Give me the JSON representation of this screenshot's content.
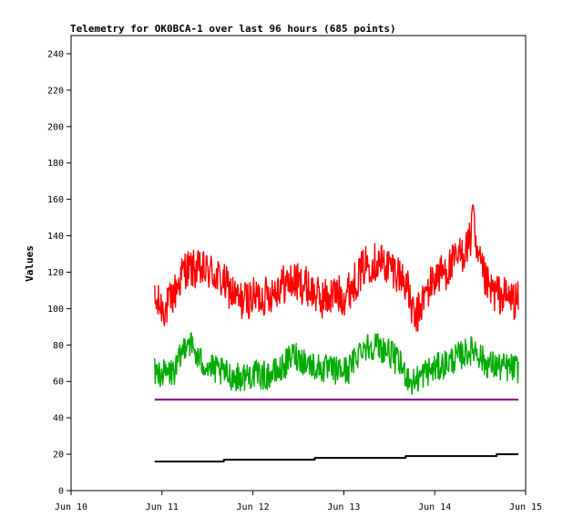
{
  "chart_data": {
    "type": "line",
    "title": "Telemetry for OK0BCA-1 over last 96 hours (685 points)",
    "xlabel": "",
    "ylabel": "Values",
    "x_ticks": [
      "Jun 10",
      "Jun 11",
      "Jun 12",
      "Jun 13",
      "Jun 14",
      "Jun 15"
    ],
    "xlim_days": [
      10,
      15
    ],
    "ylim": [
      0,
      250
    ],
    "y_ticks": [
      0,
      20,
      40,
      60,
      80,
      100,
      120,
      140,
      160,
      180,
      200,
      220,
      240
    ],
    "grid": false,
    "legend": "none",
    "series": [
      {
        "color": "#ff0000",
        "x_start_day": 10.92,
        "x_end_day": 14.92,
        "mean": [
          [
            10.92,
            103
          ],
          [
            11.05,
            100
          ],
          [
            11.15,
            110
          ],
          [
            11.25,
            122
          ],
          [
            11.4,
            121
          ],
          [
            11.55,
            120
          ],
          [
            11.7,
            113
          ],
          [
            11.85,
            104
          ],
          [
            12.0,
            106
          ],
          [
            12.15,
            107
          ],
          [
            12.3,
            113
          ],
          [
            12.45,
            115
          ],
          [
            12.6,
            112
          ],
          [
            12.75,
            105
          ],
          [
            12.9,
            108
          ],
          [
            13.0,
            107
          ],
          [
            13.1,
            113
          ],
          [
            13.25,
            125
          ],
          [
            13.4,
            126
          ],
          [
            13.55,
            122
          ],
          [
            13.68,
            115
          ],
          [
            13.78,
            93
          ],
          [
            13.88,
            106
          ],
          [
            14.0,
            117
          ],
          [
            14.15,
            122
          ],
          [
            14.3,
            130
          ],
          [
            14.4,
            138
          ],
          [
            14.5,
            123
          ],
          [
            14.6,
            110
          ],
          [
            14.75,
            107
          ],
          [
            14.92,
            104
          ]
        ],
        "noise": 11,
        "peak": {
          "x": 14.42,
          "y": 158
        }
      },
      {
        "color": "#00aa00",
        "x_start_day": 10.92,
        "x_end_day": 14.92,
        "mean": [
          [
            10.92,
            65
          ],
          [
            11.05,
            64
          ],
          [
            11.15,
            66
          ],
          [
            11.28,
            84
          ],
          [
            11.4,
            72
          ],
          [
            11.55,
            67
          ],
          [
            11.7,
            64
          ],
          [
            11.85,
            62
          ],
          [
            12.0,
            64
          ],
          [
            12.15,
            63
          ],
          [
            12.3,
            66
          ],
          [
            12.45,
            75
          ],
          [
            12.6,
            70
          ],
          [
            12.75,
            67
          ],
          [
            12.9,
            66
          ],
          [
            13.05,
            66
          ],
          [
            13.2,
            79
          ],
          [
            13.35,
            80
          ],
          [
            13.5,
            76
          ],
          [
            13.62,
            69
          ],
          [
            13.75,
            59
          ],
          [
            13.9,
            65
          ],
          [
            14.05,
            68
          ],
          [
            14.2,
            72
          ],
          [
            14.35,
            76
          ],
          [
            14.45,
            78
          ],
          [
            14.55,
            70
          ],
          [
            14.7,
            68
          ],
          [
            14.92,
            67
          ]
        ],
        "noise": 8
      },
      {
        "color": "#800080",
        "values_x": [
          10.92,
          14.92
        ],
        "values_y": [
          50,
          50
        ]
      },
      {
        "color": "#000000",
        "step": true,
        "values_x": [
          10.92,
          11.68,
          12.68,
          13.68,
          14.68,
          14.92
        ],
        "values_y": [
          16,
          17,
          18,
          19,
          20,
          20
        ]
      }
    ]
  }
}
